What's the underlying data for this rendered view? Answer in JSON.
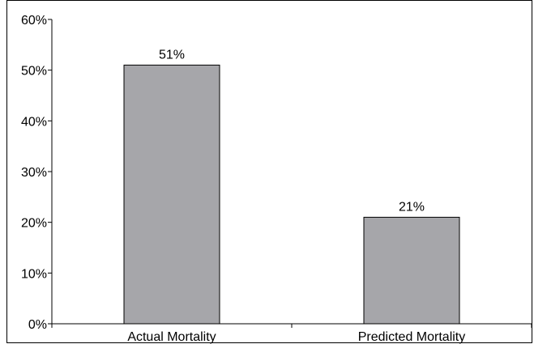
{
  "chart_data": {
    "type": "bar",
    "categories": [
      "Actual Mortality",
      "Predicted Mortality"
    ],
    "values": [
      51,
      21
    ],
    "data_labels": [
      "51%",
      "21%"
    ],
    "ylim": [
      0,
      60
    ],
    "yticks": [
      0,
      10,
      20,
      30,
      40,
      50,
      60
    ],
    "ytick_labels": [
      "0%",
      "10%",
      "20%",
      "30%",
      "40%",
      "50%",
      "60%"
    ],
    "grid": false,
    "legend": "none",
    "title": "",
    "xlabel": "",
    "ylabel": "",
    "colors": {
      "bar_fill": "#a6a6aa",
      "bar_stroke": "#000000",
      "axis": "#000000",
      "frame": "#000000",
      "text": "#000000"
    }
  }
}
